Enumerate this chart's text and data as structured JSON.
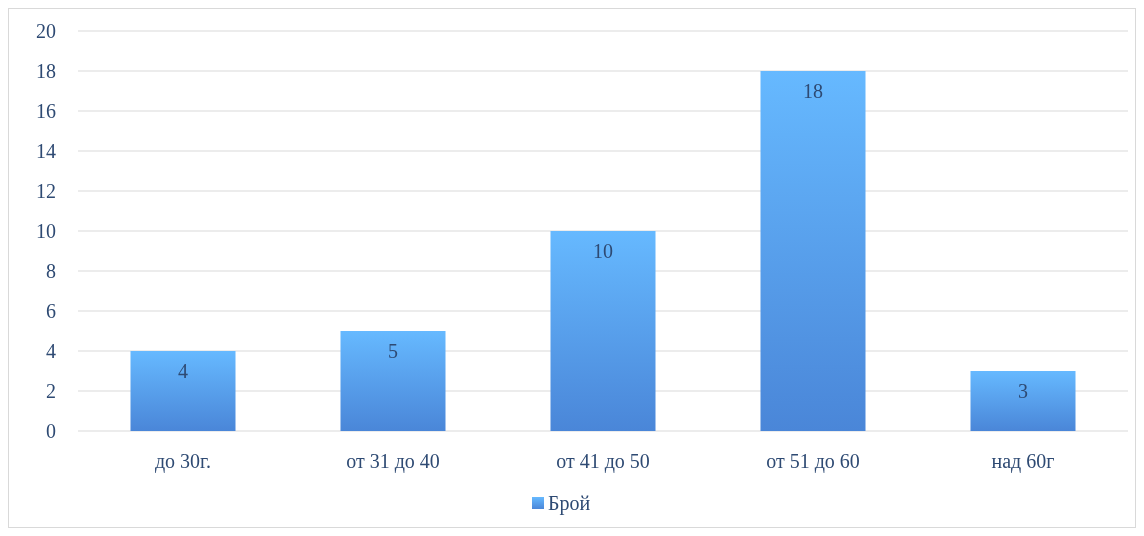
{
  "chart_data": {
    "type": "bar",
    "categories": [
      "до 30г.",
      "от 31 до 40",
      "от 41 до 50",
      "от 51 до 60",
      "над 60г"
    ],
    "series": [
      {
        "name": "Брой",
        "color": "#4a86d8",
        "values": [
          4,
          5,
          10,
          18,
          3
        ]
      }
    ],
    "ylim": [
      0,
      20
    ],
    "yticks": [
      0,
      2,
      4,
      6,
      8,
      10,
      12,
      14,
      16,
      18,
      20
    ],
    "grid": "y",
    "legend": "bottom",
    "data_labels": true
  }
}
